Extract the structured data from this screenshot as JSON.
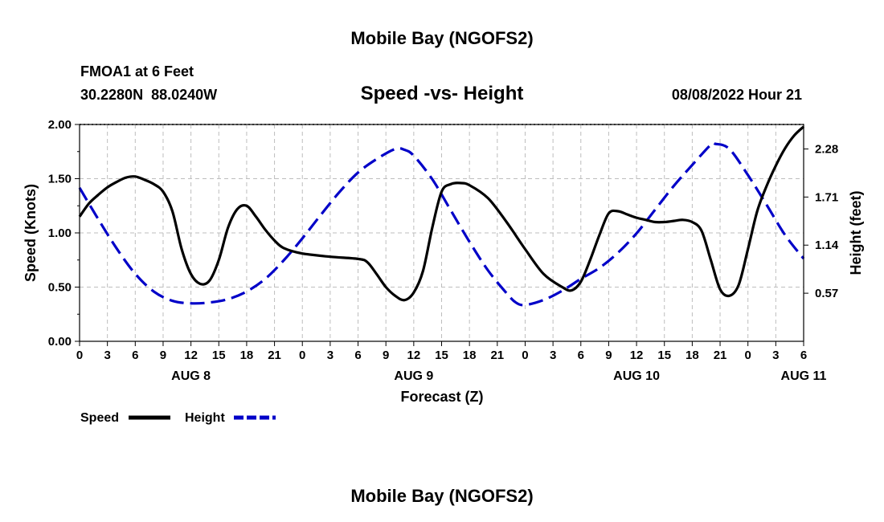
{
  "page": {
    "title": "Mobile Bay (NGOFS2)",
    "station": "FMOA1 at 6 Feet",
    "coords": "30.2280N  88.0240W",
    "datetime": "08/08/2022 Hour 21",
    "footer_title": "Mobile Bay (NGOFS2)"
  },
  "chart_data": {
    "type": "line",
    "title": "Speed -vs- Height",
    "xlabel": "Forecast (Z)",
    "ylabel": "Speed (Knots)",
    "y2label": "Height (feet)",
    "xlim": [
      0,
      78
    ],
    "ylim": [
      0,
      2
    ],
    "y2lim": [
      0.0,
      2.57
    ],
    "grid": true,
    "x_ticks": [
      0,
      3,
      6,
      9,
      12,
      15,
      18,
      21,
      24,
      27,
      30,
      33,
      36,
      39,
      42,
      45,
      48,
      51,
      54,
      57,
      60,
      63,
      66,
      69,
      72,
      75,
      78
    ],
    "x_tick_labels": [
      "0",
      "3",
      "6",
      "9",
      "12",
      "15",
      "18",
      "21",
      "0",
      "3",
      "6",
      "9",
      "12",
      "15",
      "18",
      "21",
      "0",
      "3",
      "6",
      "9",
      "12",
      "15",
      "18",
      "21",
      "0",
      "3",
      "6"
    ],
    "y_ticks": [
      0,
      0.5,
      1.0,
      1.5,
      2.0
    ],
    "y_tick_labels": [
      "0.00",
      "0.50",
      "1.00",
      "1.50",
      "2.00"
    ],
    "y2_ticks": [
      0.57,
      1.14,
      1.71,
      2.28
    ],
    "y2_tick_labels": [
      "0.57",
      "1.14",
      "1.71",
      "2.28"
    ],
    "day_labels": [
      {
        "x": 12,
        "label": "AUG 8"
      },
      {
        "x": 36,
        "label": "AUG 9"
      },
      {
        "x": 60,
        "label": "AUG 10"
      },
      {
        "x": 78,
        "label": "AUG 11"
      }
    ],
    "legend": [
      {
        "name": "Speed",
        "color": "#000000",
        "dash": "solid"
      },
      {
        "name": "Height",
        "color": "#0000c8",
        "dash": "dashed"
      }
    ],
    "series": [
      {
        "name": "Speed",
        "axis": "left",
        "color": "#000000",
        "x": [
          0,
          1,
          2,
          3,
          4,
          5,
          6,
          7,
          8,
          9,
          10,
          11,
          12,
          13,
          14,
          15,
          16,
          17,
          18,
          19,
          20,
          21,
          22,
          24,
          27,
          30,
          31,
          32,
          33,
          34,
          35,
          36,
          37,
          38,
          39,
          40,
          41,
          42,
          44,
          46,
          48,
          50,
          52,
          53,
          54,
          55,
          56,
          57,
          58,
          59,
          60,
          61,
          62,
          63,
          64,
          65,
          66,
          67,
          68,
          69,
          70,
          71,
          72,
          73,
          74,
          75,
          76,
          77,
          78
        ],
        "y": [
          1.15,
          1.27,
          1.35,
          1.42,
          1.47,
          1.51,
          1.52,
          1.49,
          1.45,
          1.38,
          1.2,
          0.85,
          0.62,
          0.53,
          0.56,
          0.75,
          1.05,
          1.22,
          1.25,
          1.15,
          1.03,
          0.93,
          0.86,
          0.81,
          0.78,
          0.76,
          0.73,
          0.62,
          0.5,
          0.42,
          0.38,
          0.45,
          0.65,
          1.05,
          1.38,
          1.45,
          1.46,
          1.44,
          1.32,
          1.1,
          0.85,
          0.62,
          0.5,
          0.47,
          0.55,
          0.75,
          0.98,
          1.18,
          1.2,
          1.17,
          1.14,
          1.12,
          1.1,
          1.1,
          1.11,
          1.12,
          1.1,
          1.02,
          0.75,
          0.48,
          0.42,
          0.52,
          0.85,
          1.2,
          1.43,
          1.62,
          1.78,
          1.9,
          1.98
        ]
      },
      {
        "name": "Height",
        "axis": "right",
        "color": "#0000c8",
        "x": [
          0,
          2,
          4,
          6,
          8,
          10,
          12,
          14,
          16,
          18,
          20,
          22,
          24,
          26,
          28,
          30,
          32,
          34,
          35,
          36,
          38,
          40,
          42,
          44,
          46,
          47,
          48,
          50,
          52,
          54,
          56,
          58,
          60,
          62,
          64,
          66,
          68,
          68.5,
          70,
          72,
          74,
          76,
          78
        ],
        "y": [
          1.82,
          1.45,
          1.1,
          0.8,
          0.59,
          0.48,
          0.45,
          0.46,
          0.5,
          0.59,
          0.74,
          0.96,
          1.22,
          1.5,
          1.77,
          2.0,
          2.16,
          2.28,
          2.27,
          2.2,
          1.92,
          1.55,
          1.18,
          0.84,
          0.57,
          0.46,
          0.43,
          0.49,
          0.6,
          0.74,
          0.87,
          1.05,
          1.28,
          1.56,
          1.84,
          2.09,
          2.33,
          2.34,
          2.28,
          1.97,
          1.62,
          1.26,
          0.98
        ]
      }
    ]
  }
}
